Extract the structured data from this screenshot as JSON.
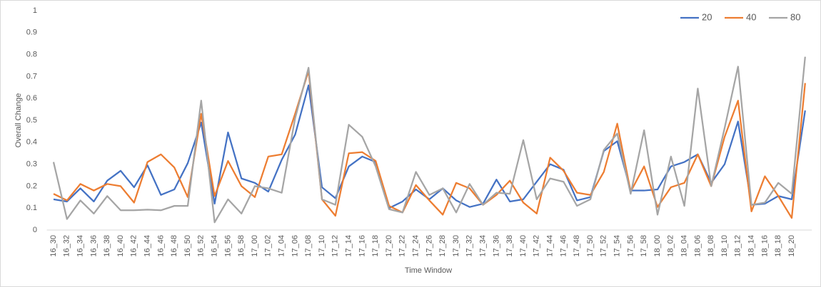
{
  "chart_data": {
    "type": "line",
    "x_label": "Time Window",
    "y_label": "Overall Change",
    "categories": [
      "16_30",
      "16_32",
      "16_34",
      "16_36",
      "16_38",
      "16_40",
      "16_42",
      "16_44",
      "16_46",
      "16_48",
      "16_50",
      "16_52",
      "16_54",
      "16_56",
      "16_58",
      "17_00",
      "17_02",
      "17_04",
      "17_06",
      "17_08",
      "17_10",
      "17_12",
      "17_14",
      "17_16",
      "17_18",
      "17_20",
      "17_22",
      "17_24",
      "17_26",
      "17_28",
      "17_30",
      "17_32",
      "17_34",
      "17_36",
      "17_38",
      "17_40",
      "17_42",
      "17_44",
      "17_46",
      "17_48",
      "17_50",
      "17_52",
      "17_54",
      "17_56",
      "17_58",
      "18_00",
      "18_02",
      "18_04",
      "18_06",
      "18_08",
      "18_10",
      "18_12",
      "18_14",
      "18_16",
      "18_18",
      "18_20",
      null
    ],
    "series": [
      {
        "name": "20",
        "color": "#4472c4",
        "values": [
          0.14,
          0.13,
          0.19,
          0.13,
          0.225,
          0.27,
          0.195,
          0.295,
          0.16,
          0.185,
          0.305,
          0.49,
          0.12,
          0.445,
          0.235,
          0.215,
          0.175,
          0.32,
          0.435,
          0.66,
          0.195,
          0.145,
          0.29,
          0.335,
          0.31,
          0.1,
          0.13,
          0.185,
          0.14,
          0.19,
          0.135,
          0.105,
          0.12,
          0.23,
          0.13,
          0.14,
          0.22,
          0.3,
          0.275,
          0.135,
          0.15,
          0.36,
          0.405,
          0.18,
          0.18,
          0.185,
          0.29,
          0.31,
          0.345,
          0.215,
          0.3,
          0.495,
          0.115,
          0.12,
          0.155,
          0.14,
          0.545
        ]
      },
      {
        "name": "40",
        "color": "#ed7d31",
        "values": [
          0.165,
          0.135,
          0.21,
          0.18,
          0.21,
          0.2,
          0.125,
          0.31,
          0.345,
          0.285,
          0.15,
          0.53,
          0.155,
          0.315,
          0.2,
          0.15,
          0.335,
          0.345,
          0.53,
          0.725,
          0.14,
          0.065,
          0.35,
          0.355,
          0.315,
          0.11,
          0.08,
          0.205,
          0.135,
          0.07,
          0.215,
          0.19,
          0.115,
          0.16,
          0.225,
          0.125,
          0.075,
          0.33,
          0.27,
          0.17,
          0.16,
          0.265,
          0.485,
          0.175,
          0.29,
          0.105,
          0.195,
          0.215,
          0.345,
          0.2,
          0.425,
          0.59,
          0.085,
          0.245,
          0.155,
          0.055,
          0.67
        ]
      },
      {
        "name": "80",
        "color": "#a5a5a5",
        "values": [
          0.31,
          0.05,
          0.135,
          0.075,
          0.155,
          0.09,
          0.09,
          0.093,
          0.09,
          0.11,
          0.11,
          0.59,
          0.035,
          0.14,
          0.075,
          0.2,
          0.19,
          0.17,
          0.51,
          0.74,
          0.14,
          0.115,
          0.48,
          0.425,
          0.29,
          0.095,
          0.08,
          0.265,
          0.16,
          0.19,
          0.08,
          0.21,
          0.115,
          0.17,
          0.165,
          0.41,
          0.14,
          0.235,
          0.22,
          0.11,
          0.14,
          0.365,
          0.44,
          0.165,
          0.455,
          0.07,
          0.335,
          0.11,
          0.645,
          0.2,
          0.465,
          0.745,
          0.115,
          0.125,
          0.215,
          0.165,
          0.79
        ]
      }
    ],
    "ylim": [
      0,
      1
    ],
    "yticks": [
      0,
      0.1,
      0.2,
      0.3,
      0.4,
      0.5,
      0.6,
      0.7,
      0.8,
      0.9,
      1
    ],
    "grid": false,
    "legend": "top-right"
  }
}
